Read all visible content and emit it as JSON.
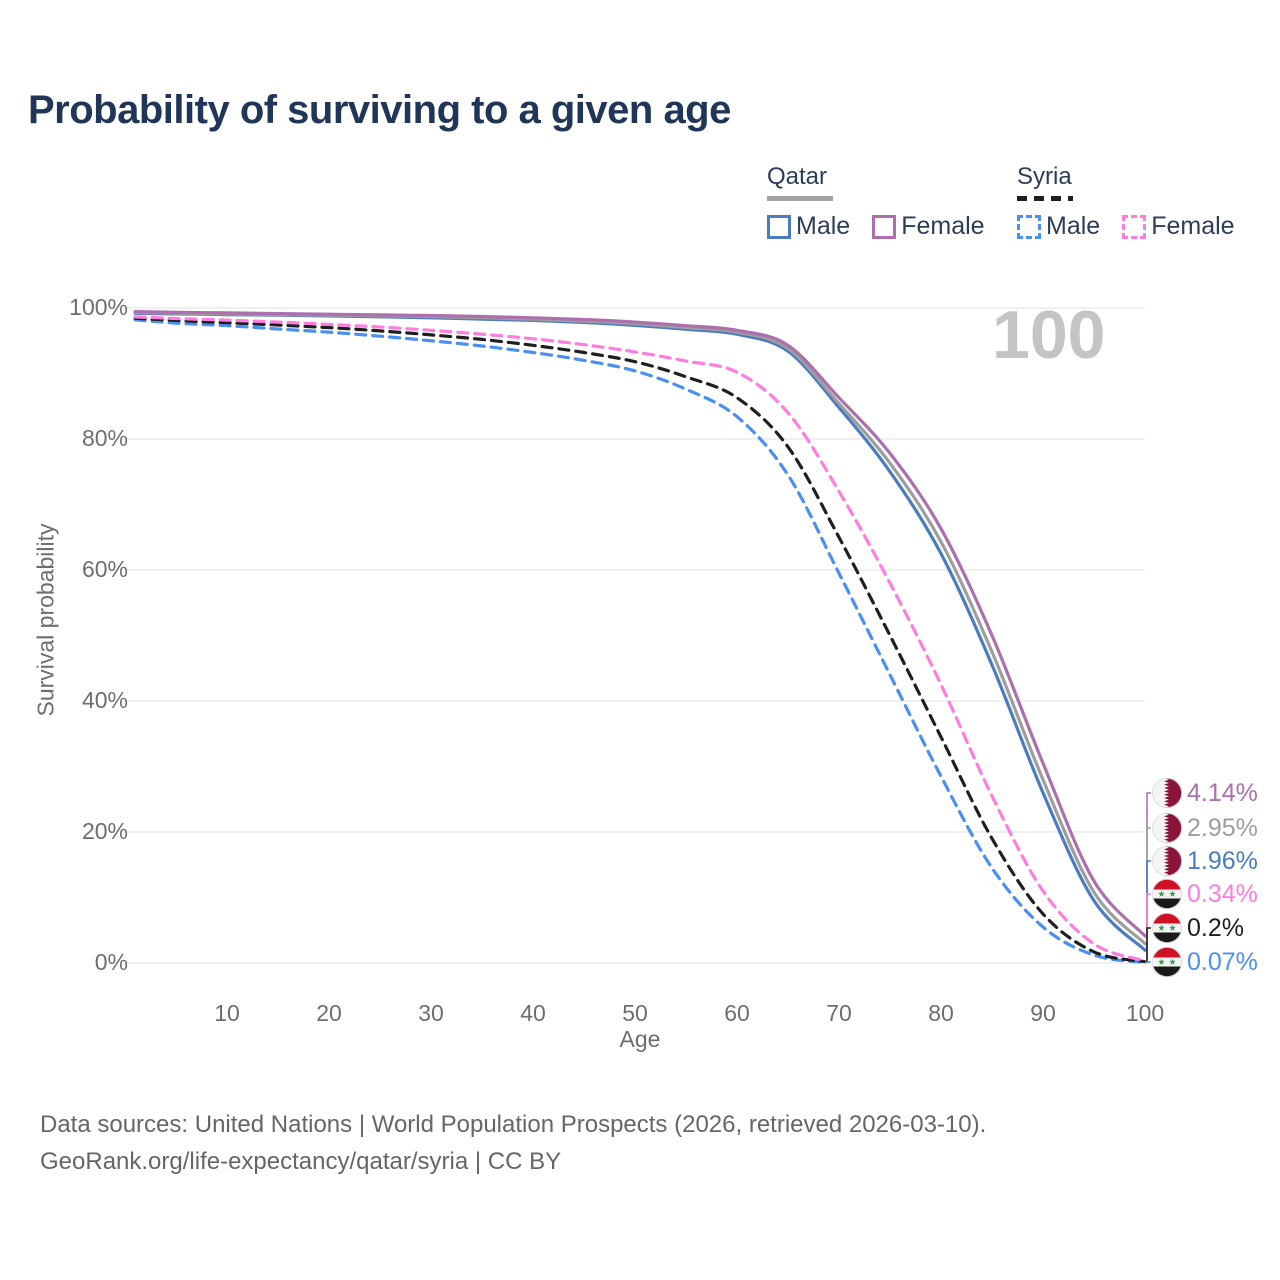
{
  "page": {
    "title": "Probability of surviving to a given age"
  },
  "watermark": "100",
  "legend": {
    "groups": [
      {
        "id": "qatar",
        "label": "Qatar",
        "line_style": "solid",
        "line_color": "#a3a3a3",
        "items": [
          {
            "id": "qatar-male",
            "label": "Male",
            "color": "#4a7cc0",
            "dashed": false
          },
          {
            "id": "qatar-female",
            "label": "Female",
            "color": "#ad6fad",
            "dashed": false
          }
        ]
      },
      {
        "id": "syria",
        "label": "Syria",
        "line_style": "dashed",
        "line_color": "#1f1f1f",
        "items": [
          {
            "id": "syria-male",
            "label": "Male",
            "color": "#4a90f2",
            "dashed": true
          },
          {
            "id": "syria-female",
            "label": "Female",
            "color": "#ff7ddf",
            "dashed": true
          }
        ]
      }
    ]
  },
  "chart_data": {
    "type": "line",
    "title": "Probability of surviving to a given age",
    "xlabel": "Age",
    "ylabel": "Survival probability",
    "xlim": [
      0,
      100
    ],
    "ylim": [
      0,
      100
    ],
    "x_ticks": [
      10,
      20,
      30,
      40,
      50,
      60,
      70,
      80,
      90,
      100
    ],
    "y_ticks": [
      0,
      20,
      40,
      60,
      80,
      100
    ],
    "y_tick_suffix": "%",
    "grid": "horizontal",
    "legend_position": "top-right",
    "ages": [
      1,
      5,
      10,
      15,
      20,
      25,
      30,
      35,
      40,
      45,
      50,
      55,
      60,
      65,
      70,
      75,
      80,
      85,
      90,
      95,
      100
    ],
    "series": [
      {
        "id": "qatar-female",
        "name": "Qatar Female",
        "country": "Qatar",
        "sex": "Female",
        "color": "#ad6fad",
        "dashed": false,
        "flag": "qatar-flag-icon",
        "end_label": "4.14%",
        "values": [
          99.45,
          99.35,
          99.25,
          99.15,
          99.05,
          98.95,
          98.85,
          98.7,
          98.5,
          98.25,
          97.85,
          97.3,
          96.6,
          94.3,
          86.3,
          77.8,
          66.3,
          50.0,
          30.5,
          12.5,
          4.14
        ]
      },
      {
        "id": "qatar-both",
        "name": "Qatar Both sexes",
        "country": "Qatar",
        "sex": "Both",
        "color": "#9e9e9e",
        "dashed": false,
        "flag": "qatar-flag-icon",
        "end_label": "2.95%",
        "values": [
          99.3,
          99.2,
          99.1,
          99.0,
          98.9,
          98.8,
          98.7,
          98.5,
          98.3,
          98.0,
          97.6,
          97.0,
          96.3,
          93.8,
          85.4,
          76.3,
          64.3,
          47.5,
          28.0,
          10.8,
          2.95
        ]
      },
      {
        "id": "qatar-male",
        "name": "Qatar Male",
        "country": "Qatar",
        "sex": "Male",
        "color": "#4a7cc0",
        "dashed": false,
        "flag": "qatar-flag-icon",
        "end_label": "1.96%",
        "values": [
          99.2,
          99.1,
          99.0,
          98.9,
          98.8,
          98.65,
          98.5,
          98.3,
          98.1,
          97.8,
          97.35,
          96.75,
          96.0,
          93.4,
          84.8,
          75.0,
          62.5,
          45.5,
          26.0,
          9.5,
          1.96
        ]
      },
      {
        "id": "syria-female",
        "name": "Syria Female",
        "country": "Syria",
        "sex": "Female",
        "color": "#ff7ddf",
        "dashed": true,
        "flag": "syria-flag-icon",
        "end_label": "0.34%",
        "values": [
          98.65,
          98.4,
          98.15,
          97.85,
          97.5,
          97.1,
          96.6,
          96.0,
          95.3,
          94.4,
          93.3,
          91.9,
          90.2,
          84.0,
          72.0,
          58.0,
          42.5,
          25.5,
          11.0,
          2.9,
          0.34
        ]
      },
      {
        "id": "syria-both",
        "name": "Syria Both sexes",
        "country": "Syria",
        "sex": "Both",
        "color": "#1f1f1f",
        "dashed": true,
        "flag": "syria-flag-icon",
        "end_label": "0.2%",
        "values": [
          98.45,
          98.1,
          97.75,
          97.4,
          97.0,
          96.5,
          95.9,
          95.2,
          94.3,
          93.2,
          91.8,
          89.5,
          86.3,
          78.8,
          65.0,
          50.0,
          34.5,
          19.0,
          7.5,
          1.7,
          0.2
        ]
      },
      {
        "id": "syria-male",
        "name": "Syria Male",
        "country": "Syria",
        "sex": "Male",
        "color": "#4a90f2",
        "dashed": true,
        "flag": "syria-flag-icon",
        "end_label": "0.07%",
        "values": [
          98.2,
          97.7,
          97.3,
          96.8,
          96.3,
          95.7,
          95.0,
          94.2,
          93.2,
          92.0,
          90.4,
          87.6,
          83.4,
          74.5,
          59.5,
          44.0,
          28.5,
          14.5,
          5.5,
          1.2,
          0.07
        ]
      }
    ],
    "annotations": {
      "hover_age_watermark": "100"
    }
  },
  "footer": {
    "line1": "Data sources: United Nations | World Population Prospects (2026, retrieved 2026-03-10).",
    "line2": "GeoRank.org/life-expectancy/qatar/syria | CC BY"
  },
  "colors": {
    "title": "#1f3659",
    "axis_text": "#6e6e6e",
    "gridline": "#e6e6e6",
    "watermark": "#c4c4c4",
    "qatar_maroon": "#8a1538",
    "syria_red": "#cf1126",
    "syria_green": "#3f9e4d"
  }
}
